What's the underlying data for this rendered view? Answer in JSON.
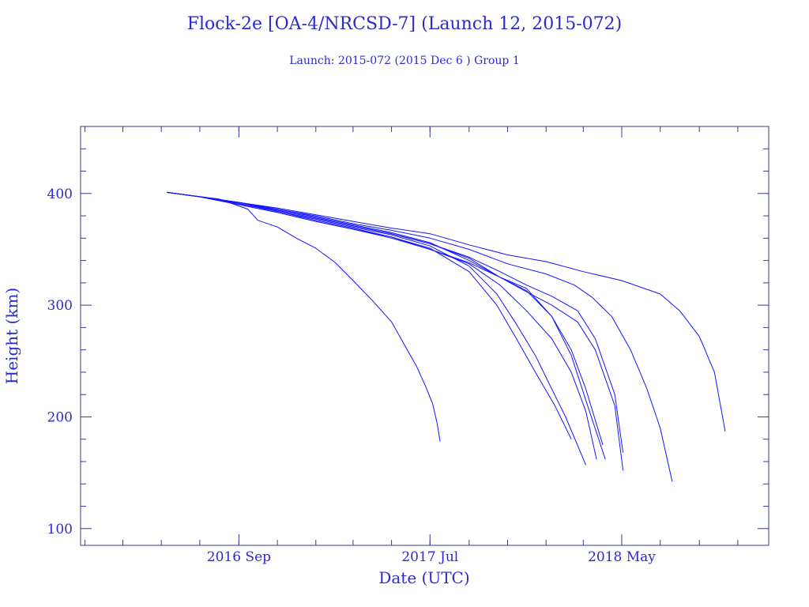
{
  "chart_data": {
    "type": "line",
    "title": "Flock-2e [OA-4/NRCSD-7] (Launch 12, 2015-072)",
    "subtitle": "Launch: 2015-072  (2015 Dec  6 )  Group 1",
    "xlabel": "Date (UTC)",
    "ylabel": "Height (km)",
    "xlim": [
      "2015-12-25",
      "2018-12-20"
    ],
    "ylim": [
      85,
      460
    ],
    "x_ticks": [
      {
        "date": "2016-09-01",
        "label": "2016 Sep"
      },
      {
        "date": "2017-07-01",
        "label": "2017 Jul"
      },
      {
        "date": "2018-05-01",
        "label": "2018 May"
      }
    ],
    "y_ticks": [
      100,
      200,
      300,
      400
    ],
    "grid": false,
    "color": "#1414ff",
    "series": [
      {
        "x": [
          "2016-05-10",
          "2016-06-20",
          "2016-08-01",
          "2016-09-15",
          "2016-10-01",
          "2016-11-01",
          "2016-12-01",
          "2017-01-01",
          "2017-02-01",
          "2017-03-01",
          "2017-04-01",
          "2017-05-01",
          "2017-05-20",
          "2017-06-10",
          "2017-06-25",
          "2017-07-05",
          "2017-07-12",
          "2017-07-17"
        ],
        "y": [
          401,
          398,
          395,
          386,
          376,
          370,
          360,
          351,
          338,
          322,
          304,
          285,
          266,
          245,
          226,
          212,
          195,
          178
        ]
      },
      {
        "x": [
          "2016-05-10",
          "2016-07-01",
          "2016-09-01",
          "2016-11-01",
          "2017-01-01",
          "2017-03-01",
          "2017-05-01",
          "2017-07-01",
          "2017-09-01",
          "2017-10-15",
          "2017-11-15",
          "2017-12-15",
          "2018-01-15",
          "2018-02-10"
        ],
        "y": [
          401,
          397,
          390,
          383,
          375,
          368,
          361,
          351,
          330,
          300,
          270,
          240,
          210,
          180
        ]
      },
      {
        "x": [
          "2016-05-10",
          "2016-07-01",
          "2016-09-01",
          "2016-11-01",
          "2017-01-01",
          "2017-03-01",
          "2017-05-01",
          "2017-07-01",
          "2017-09-01",
          "2017-10-15",
          "2017-11-15",
          "2017-12-15",
          "2018-01-10",
          "2018-02-01",
          "2018-03-05"
        ],
        "y": [
          401,
          397,
          391,
          384,
          377,
          370,
          363,
          353,
          335,
          310,
          283,
          255,
          225,
          200,
          157
        ]
      },
      {
        "x": [
          "2016-05-10",
          "2016-07-01",
          "2016-09-01",
          "2016-11-01",
          "2017-01-01",
          "2017-03-01",
          "2017-05-01",
          "2017-07-01",
          "2017-09-01",
          "2017-10-20",
          "2017-12-01",
          "2018-01-10",
          "2018-02-10",
          "2018-03-05",
          "2018-03-22"
        ],
        "y": [
          401,
          397,
          390,
          383,
          375,
          368,
          360,
          350,
          337,
          318,
          295,
          270,
          240,
          205,
          162
        ]
      },
      {
        "x": [
          "2016-05-10",
          "2016-07-01",
          "2016-09-01",
          "2016-11-01",
          "2017-01-01",
          "2017-03-01",
          "2017-05-01",
          "2017-07-01",
          "2017-09-01",
          "2017-10-20",
          "2017-12-01",
          "2018-01-10",
          "2018-02-10",
          "2018-03-05",
          "2018-04-01"
        ],
        "y": [
          401,
          397,
          392,
          386,
          379,
          372,
          365,
          356,
          340,
          325,
          315,
          290,
          260,
          225,
          175
        ]
      },
      {
        "x": [
          "2016-05-10",
          "2016-07-01",
          "2016-09-01",
          "2016-11-01",
          "2017-01-01",
          "2017-03-01",
          "2017-05-01",
          "2017-07-01",
          "2017-09-01",
          "2017-10-20",
          "2017-12-01",
          "2018-01-10",
          "2018-02-10",
          "2018-03-05",
          "2018-04-05"
        ],
        "y": [
          401,
          397,
          391,
          384,
          376,
          369,
          361,
          350,
          338,
          325,
          313,
          290,
          255,
          215,
          162
        ]
      },
      {
        "x": [
          "2016-05-10",
          "2016-07-01",
          "2016-09-01",
          "2016-11-01",
          "2017-01-01",
          "2017-03-01",
          "2017-05-01",
          "2017-07-01",
          "2017-09-01",
          "2017-10-20",
          "2017-12-01",
          "2018-01-10",
          "2018-02-20",
          "2018-03-20",
          "2018-04-20",
          "2018-05-03"
        ],
        "y": [
          401,
          397,
          392,
          385,
          378,
          371,
          364,
          355,
          342,
          325,
          312,
          300,
          285,
          260,
          210,
          152
        ]
      },
      {
        "x": [
          "2016-05-10",
          "2016-07-01",
          "2016-09-01",
          "2016-11-01",
          "2017-01-01",
          "2017-03-01",
          "2017-05-01",
          "2017-07-01",
          "2017-09-01",
          "2017-10-20",
          "2017-12-01",
          "2018-01-10",
          "2018-02-20",
          "2018-03-20",
          "2018-04-20",
          "2018-05-03"
        ],
        "y": [
          401,
          397,
          391,
          385,
          378,
          371,
          364,
          355,
          343,
          330,
          318,
          308,
          295,
          270,
          220,
          168
        ]
      },
      {
        "x": [
          "2016-05-10",
          "2016-07-01",
          "2016-09-01",
          "2016-11-01",
          "2017-01-01",
          "2017-03-01",
          "2017-05-01",
          "2017-07-01",
          "2017-09-01",
          "2017-11-01",
          "2018-01-01",
          "2018-02-15",
          "2018-03-15",
          "2018-04-15",
          "2018-05-15",
          "2018-06-10",
          "2018-07-01",
          "2018-07-20"
        ],
        "y": [
          401,
          397,
          392,
          386,
          380,
          373,
          367,
          360,
          350,
          337,
          328,
          318,
          307,
          290,
          260,
          225,
          190,
          142
        ]
      },
      {
        "x": [
          "2016-05-10",
          "2016-07-01",
          "2016-09-01",
          "2016-11-01",
          "2017-01-01",
          "2017-03-01",
          "2017-05-01",
          "2017-07-01",
          "2017-09-01",
          "2017-11-01",
          "2018-01-01",
          "2018-03-01",
          "2018-05-01",
          "2018-07-01",
          "2018-08-01",
          "2018-09-01",
          "2018-09-25",
          "2018-10-12"
        ],
        "y": [
          401,
          397,
          392,
          387,
          381,
          375,
          369,
          364,
          354,
          345,
          339,
          330,
          322,
          310,
          295,
          272,
          240,
          187
        ]
      }
    ]
  }
}
